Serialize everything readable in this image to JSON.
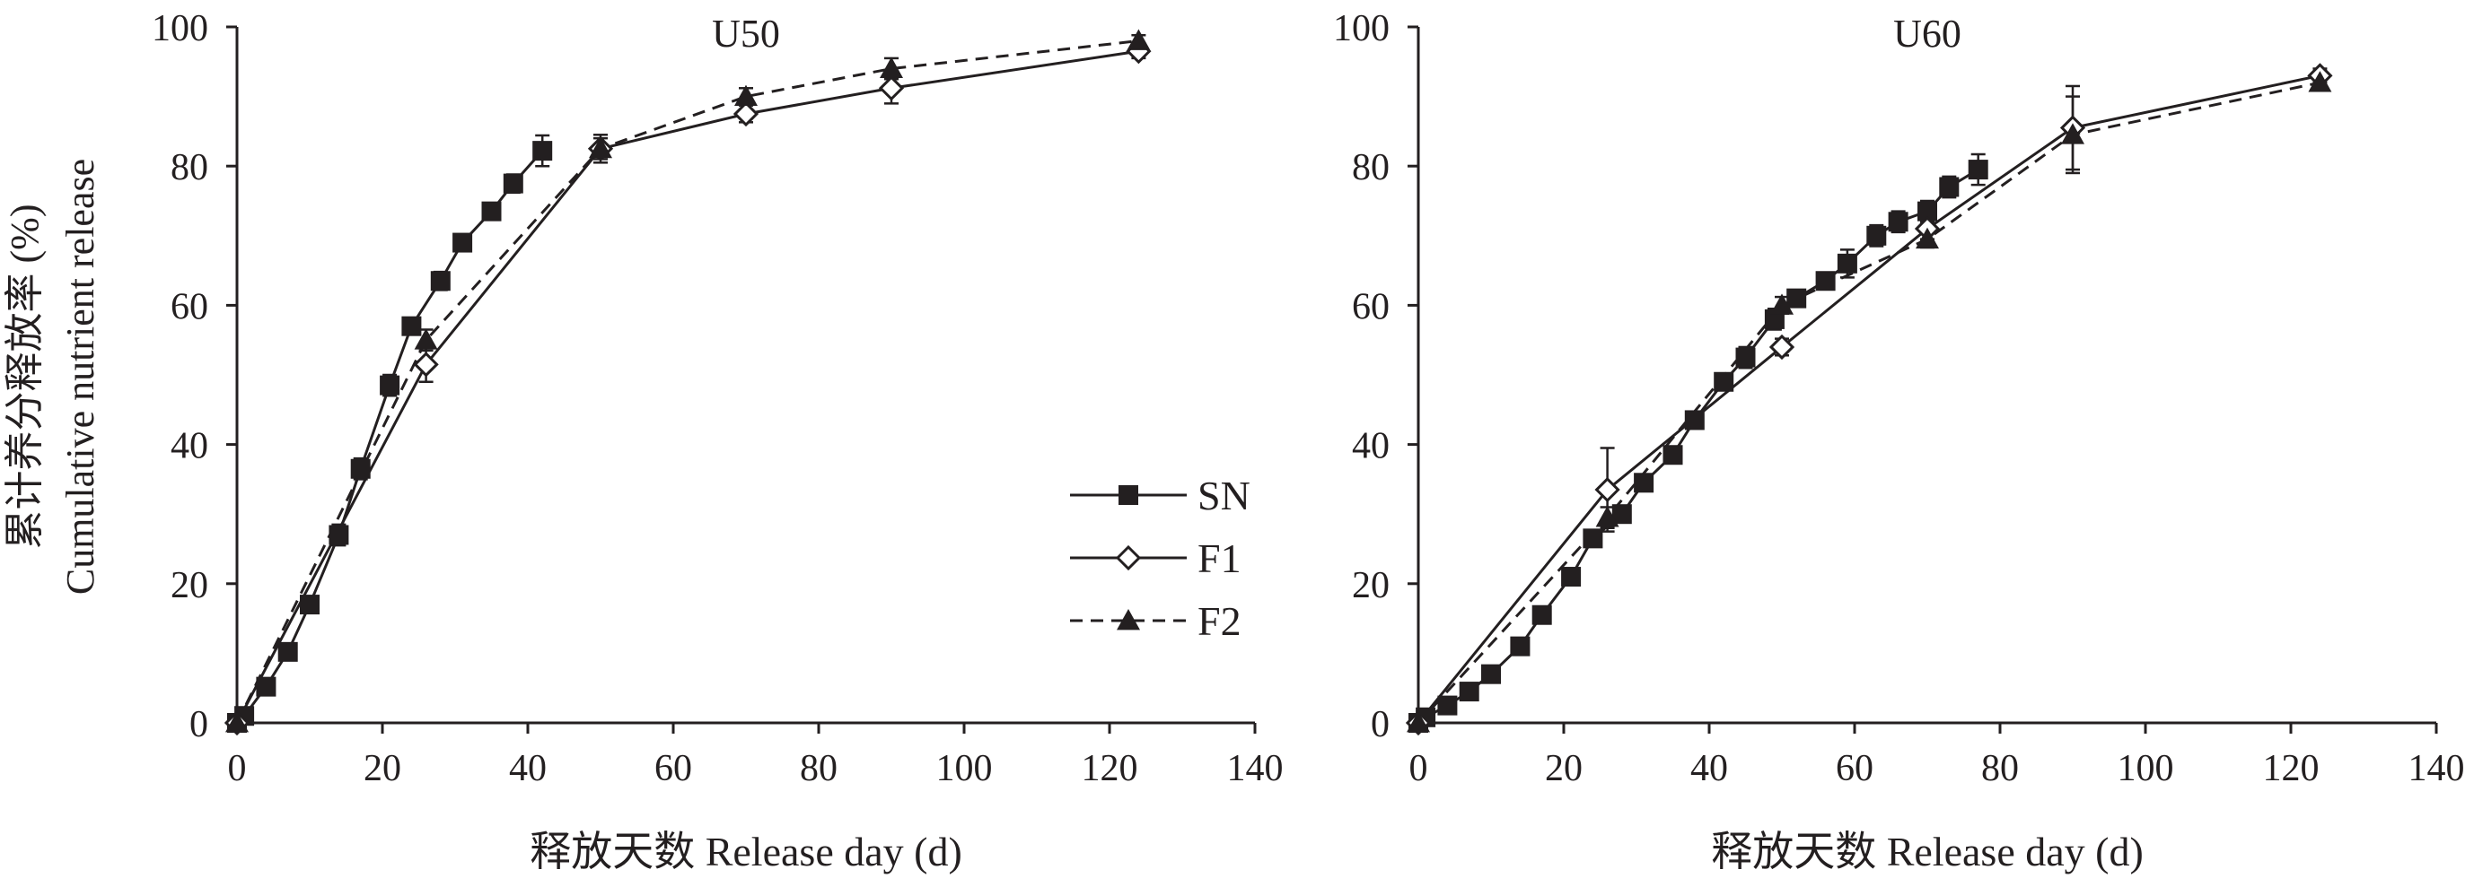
{
  "colors": {
    "ink": "#231f20",
    "background": "#ffffff"
  },
  "ylabel_zh": "累计养分释放率 (%)",
  "ylabel_en": "Cumulative nutrient release",
  "legend": [
    {
      "name": "SN",
      "marker": "square-filled",
      "line": "solid"
    },
    {
      "name": "F1",
      "marker": "diamond-open",
      "line": "solid"
    },
    {
      "name": "F2",
      "marker": "triangle-filled",
      "line": "dashed"
    }
  ],
  "chart_data": [
    {
      "type": "line",
      "title": "U50",
      "xlabel": "释放天数 Release day (d)",
      "ylabel": "累计养分释放率 (%) Cumulative nutrient release",
      "xlim": [
        0,
        140
      ],
      "ylim": [
        0,
        100
      ],
      "xticks": [
        "0",
        "20",
        "40",
        "60",
        "80",
        "100",
        "120",
        "140"
      ],
      "yticks": [
        "0",
        "20",
        "40",
        "60",
        "80",
        "100"
      ],
      "grid": false,
      "legend_position": "right-middle",
      "series": [
        {
          "name": "SN",
          "marker": "square-filled",
          "line": "solid",
          "x": [
            0,
            1,
            4,
            7,
            10,
            14,
            17,
            21,
            24,
            28,
            31,
            35,
            38,
            42
          ],
          "y": [
            0,
            1,
            5.2,
            10.2,
            17,
            27,
            36.5,
            48.5,
            57,
            63.5,
            69,
            73.5,
            77.5,
            82.2
          ],
          "err": [
            0,
            0,
            0.6,
            0.7,
            0.8,
            1.5,
            1.5,
            1.5,
            1.2,
            1.3,
            1.2,
            1.2,
            1.3,
            2.2
          ]
        },
        {
          "name": "F1",
          "marker": "diamond-open",
          "line": "solid",
          "x": [
            0,
            26,
            50,
            70,
            90,
            124
          ],
          "y": [
            0,
            51.5,
            82.5,
            87.5,
            91.2,
            96.5
          ],
          "err": [
            0,
            2.5,
            2,
            1.2,
            2.2,
            1
          ]
        },
        {
          "name": "F2",
          "marker": "triangle-filled",
          "line": "dashed",
          "x": [
            0,
            26,
            50,
            70,
            90,
            124
          ],
          "y": [
            0,
            55,
            82.5,
            90,
            94,
            98
          ],
          "err": [
            0,
            1.5,
            1.5,
            1.2,
            1.5,
            0.8
          ]
        }
      ]
    },
    {
      "type": "line",
      "title": "U60",
      "xlabel": "释放天数 Release day (d)",
      "ylabel": "",
      "xlim": [
        0,
        140
      ],
      "ylim": [
        0,
        100
      ],
      "xticks": [
        "0",
        "20",
        "40",
        "60",
        "80",
        "100",
        "120",
        "140"
      ],
      "yticks": [
        "0",
        "20",
        "40",
        "60",
        "80",
        "100"
      ],
      "grid": false,
      "series": [
        {
          "name": "SN",
          "marker": "square-filled",
          "line": "solid",
          "x": [
            0,
            1,
            4,
            7,
            10,
            14,
            17,
            21,
            24,
            28,
            31,
            35,
            38,
            42,
            45,
            49,
            52,
            56,
            59,
            63,
            66,
            70,
            73,
            77
          ],
          "y": [
            0,
            0.8,
            2.5,
            4.5,
            7,
            11,
            15.5,
            21,
            26.5,
            30,
            34.5,
            38.5,
            43.5,
            49,
            52.5,
            58,
            61,
            63.5,
            66,
            70,
            72,
            73.5,
            77,
            79.5
          ],
          "err": [
            0,
            0,
            0.5,
            0.5,
            0.6,
            0.8,
            0.8,
            1,
            1,
            1.2,
            1,
            1,
            1,
            1,
            1.5,
            1.5,
            1,
            1.2,
            2,
            1.5,
            1.5,
            1.5,
            1.5,
            2.2
          ]
        },
        {
          "name": "F1",
          "marker": "diamond-open",
          "line": "solid",
          "x": [
            0,
            26,
            50,
            70,
            90,
            124
          ],
          "y": [
            0,
            33.5,
            54,
            71,
            85.5,
            93
          ],
          "err": [
            0,
            6,
            1.2,
            1.5,
            6,
            1
          ]
        },
        {
          "name": "F2",
          "marker": "triangle-filled",
          "line": "dashed",
          "x": [
            0,
            26,
            50,
            70,
            90,
            124
          ],
          "y": [
            0,
            29.5,
            60,
            69.5,
            84.5,
            92
          ],
          "err": [
            0,
            1.5,
            1.2,
            1.2,
            5.5,
            1
          ]
        }
      ]
    }
  ]
}
